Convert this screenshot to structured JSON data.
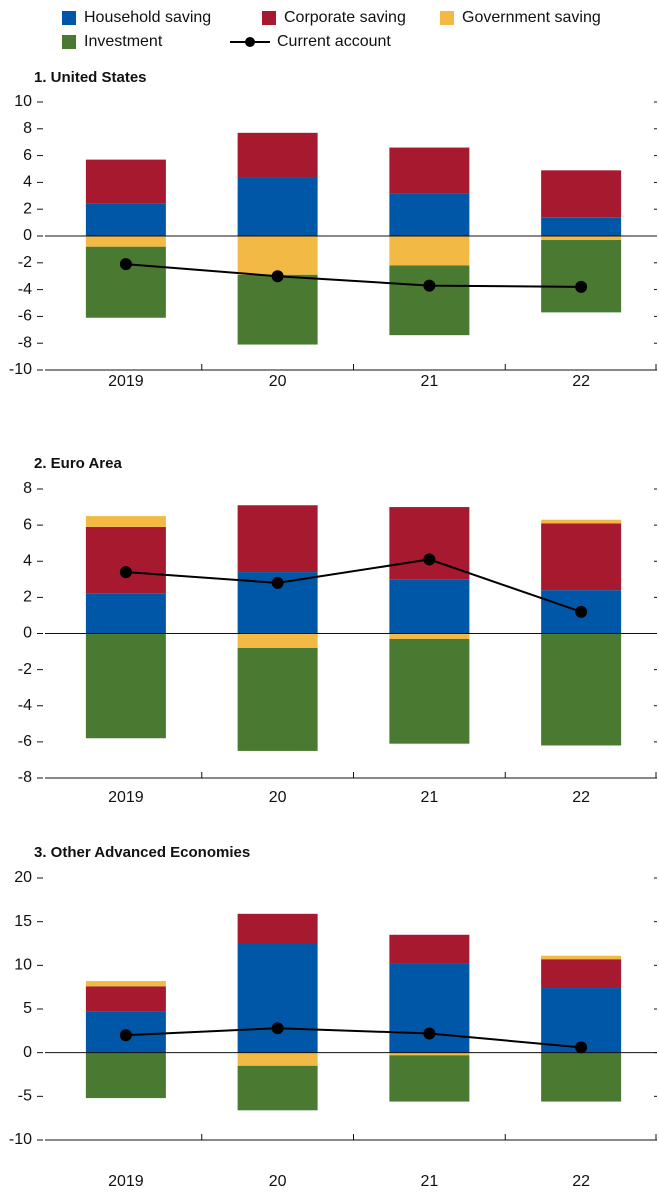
{
  "chart_data": [
    {
      "type": "bar",
      "title": "1. United States",
      "categories": [
        "2019",
        "20",
        "21",
        "22"
      ],
      "ylim": [
        -10,
        10
      ],
      "yticks": [
        -10,
        -8,
        -6,
        -4,
        -2,
        0,
        2,
        4,
        6,
        8,
        10
      ],
      "series": [
        {
          "name": "Household saving",
          "color": "#0057a8",
          "values": [
            2.4,
            4.4,
            3.2,
            1.4
          ]
        },
        {
          "name": "Corporate saving",
          "color": "#a6192e",
          "values": [
            3.3,
            3.3,
            3.4,
            3.5
          ]
        },
        {
          "name": "Government saving",
          "color": "#f2b945",
          "values": [
            -0.8,
            -2.9,
            -2.2,
            -0.3
          ]
        },
        {
          "name": "Investment",
          "color": "#4a7a32",
          "values": [
            -5.3,
            -5.2,
            -5.2,
            -5.4
          ]
        },
        {
          "name": "Current account",
          "color": "#000000",
          "type": "line",
          "values": [
            -2.1,
            -3.0,
            -3.7,
            -3.8
          ]
        }
      ]
    },
    {
      "type": "bar",
      "title": "2. Euro Area",
      "categories": [
        "2019",
        "20",
        "21",
        "22"
      ],
      "ylim": [
        -8,
        8
      ],
      "yticks": [
        -8,
        -6,
        -4,
        -2,
        0,
        2,
        4,
        6,
        8
      ],
      "series": [
        {
          "name": "Household saving",
          "color": "#0057a8",
          "values": [
            2.2,
            3.4,
            3.0,
            2.4
          ]
        },
        {
          "name": "Corporate saving",
          "color": "#a6192e",
          "values": [
            3.7,
            3.7,
            4.0,
            3.7
          ]
        },
        {
          "name": "Government saving",
          "color": "#f2b945",
          "values": [
            0.6,
            -0.8,
            -0.3,
            0.2
          ]
        },
        {
          "name": "Investment",
          "color": "#4a7a32",
          "values": [
            -5.8,
            -5.7,
            -5.8,
            -6.2
          ]
        },
        {
          "name": "Current account",
          "color": "#000000",
          "type": "line",
          "values": [
            3.4,
            2.8,
            4.1,
            1.2
          ]
        }
      ]
    },
    {
      "type": "bar",
      "title": "3. Other Advanced Economies",
      "categories": [
        "2019",
        "20",
        "21",
        "22"
      ],
      "ylim": [
        -10,
        20
      ],
      "yticks": [
        -10,
        -5,
        0,
        5,
        10,
        15,
        20
      ],
      "series": [
        {
          "name": "Household saving",
          "color": "#0057a8",
          "values": [
            4.7,
            12.5,
            10.2,
            7.4
          ]
        },
        {
          "name": "Corporate saving",
          "color": "#a6192e",
          "values": [
            2.9,
            3.4,
            3.3,
            3.3
          ]
        },
        {
          "name": "Government saving",
          "color": "#f2b945",
          "values": [
            0.6,
            -1.5,
            -0.3,
            0.4
          ]
        },
        {
          "name": "Investment",
          "color": "#4a7a32",
          "values": [
            -5.2,
            -5.1,
            -5.3,
            -5.6
          ]
        },
        {
          "name": "Current account",
          "color": "#000000",
          "type": "line",
          "values": [
            2.0,
            2.8,
            2.2,
            0.6
          ]
        }
      ]
    }
  ]
}
